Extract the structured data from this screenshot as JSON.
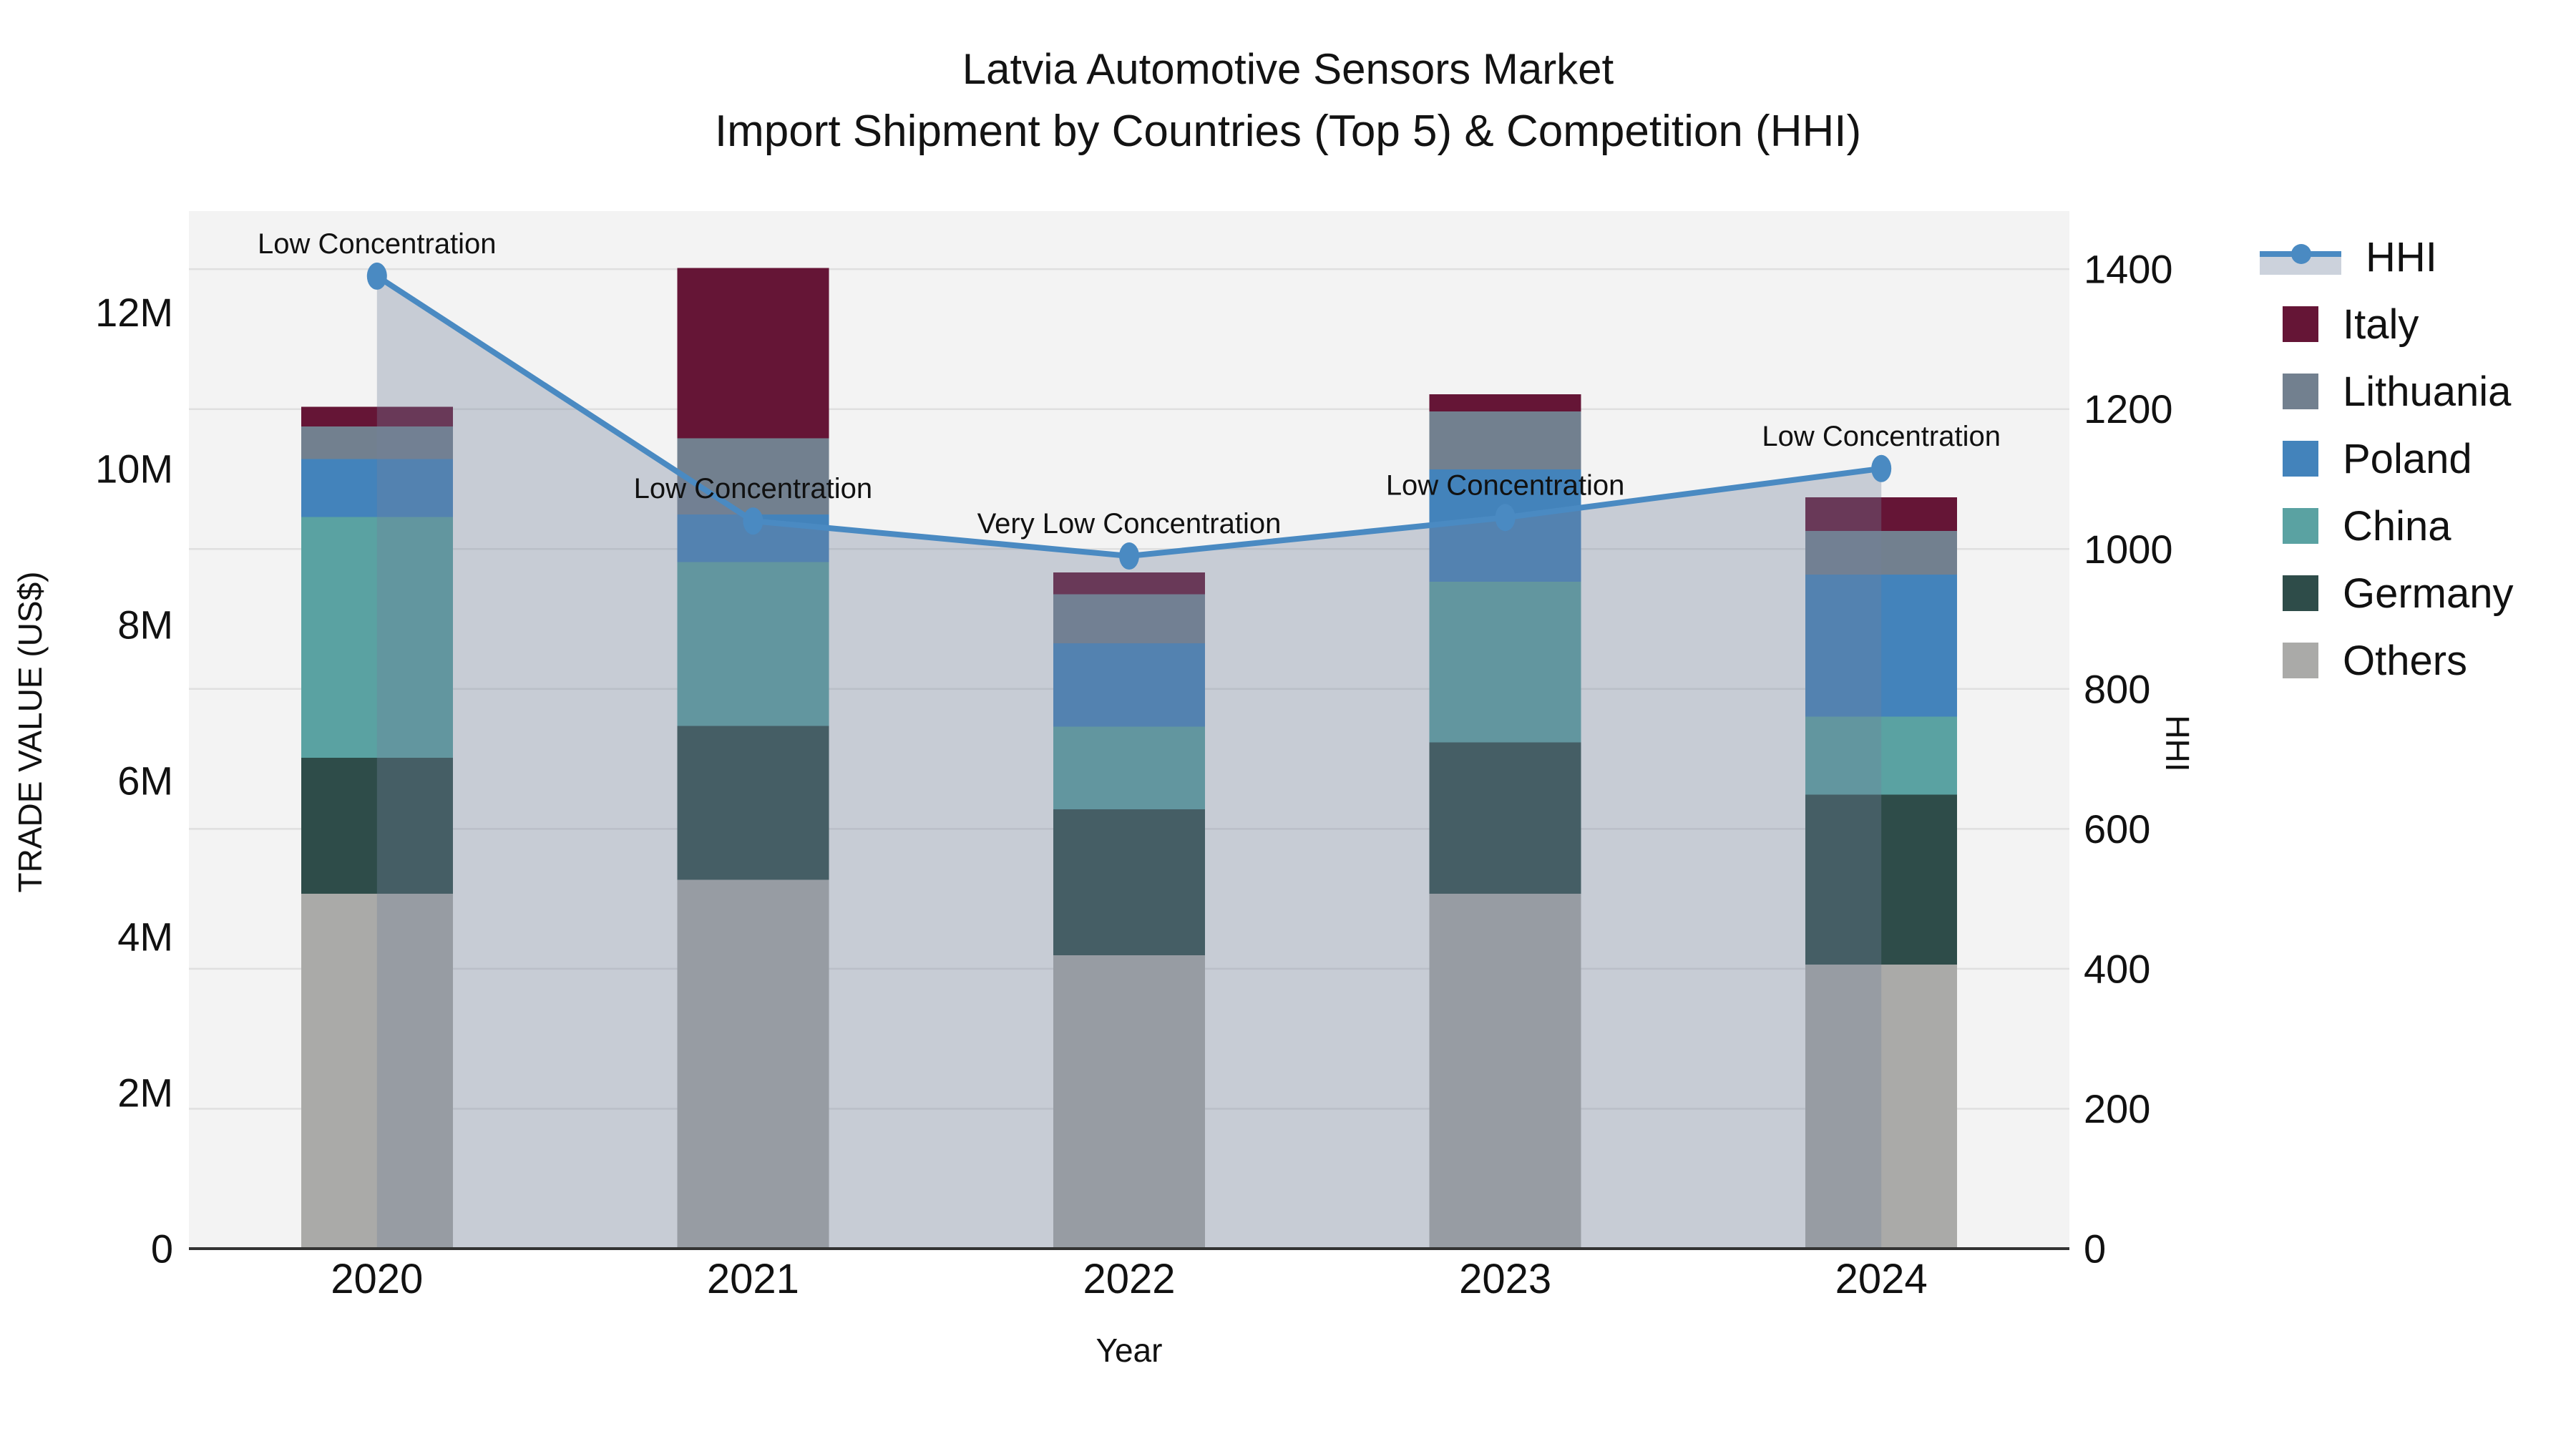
{
  "title": {
    "line1": "Latvia Automotive Sensors Market",
    "line2": "Import Shipment by Countries (Top 5) & Competition (HHI)"
  },
  "axes": {
    "x_label": "Year",
    "y_left_label": "TRADE VALUE (US$)",
    "y_right_label": "HHI",
    "y_left_tick_labels": [
      "0",
      "2M",
      "4M",
      "6M",
      "8M",
      "10M",
      "12M"
    ],
    "y_right_tick_labels": [
      "0",
      "200",
      "400",
      "600",
      "800",
      "1000",
      "1200",
      "1400"
    ]
  },
  "legend": {
    "items": [
      {
        "label": "HHI",
        "type": "line",
        "color": "#4a8ac2",
        "band": "#ccd2dc"
      },
      {
        "label": "Italy",
        "type": "swatch",
        "color": "#651536"
      },
      {
        "label": "Lithuania",
        "type": "swatch",
        "color": "#72808f"
      },
      {
        "label": "Poland",
        "type": "swatch",
        "color": "#4383bb"
      },
      {
        "label": "China",
        "type": "swatch",
        "color": "#5aa2a2"
      },
      {
        "label": "Germany",
        "type": "swatch",
        "color": "#2e4c49"
      },
      {
        "label": "Others",
        "type": "swatch",
        "color": "#aaaaa8"
      }
    ]
  },
  "chart_data": {
    "type": "bar+line",
    "title": "Latvia Automotive Sensors Market — Import Shipment by Countries (Top 5) & Competition (HHI)",
    "categories": [
      "2020",
      "2021",
      "2022",
      "2023",
      "2024"
    ],
    "value_unit": "million US$",
    "series": [
      {
        "name": "Others",
        "color": "#aaaaa8",
        "values": [
          4.55,
          4.73,
          3.76,
          4.55,
          3.64
        ]
      },
      {
        "name": "Germany",
        "color": "#2e4c49",
        "values": [
          1.74,
          1.97,
          1.87,
          1.94,
          2.18
        ]
      },
      {
        "name": "China",
        "color": "#5aa2a2",
        "values": [
          3.09,
          2.1,
          1.06,
          2.06,
          1.0
        ]
      },
      {
        "name": "Poland",
        "color": "#4383bb",
        "values": [
          0.74,
          0.61,
          1.07,
          1.44,
          1.82
        ]
      },
      {
        "name": "Lithuania",
        "color": "#72808f",
        "values": [
          0.42,
          0.98,
          0.63,
          0.74,
          0.56
        ]
      },
      {
        "name": "Italy",
        "color": "#651536",
        "values": [
          0.25,
          2.18,
          0.28,
          0.22,
          0.43
        ]
      }
    ],
    "bar_totals_m": [
      10.79,
      12.57,
      8.67,
      10.95,
      9.63
    ],
    "line_series": {
      "name": "HHI",
      "color": "#4a8ac2",
      "area_fill": "rgba(114,129,156,0.34)",
      "values": [
        1390,
        1040,
        990,
        1045,
        1115
      ],
      "annotations": [
        "Low Concentration",
        "Low Concentration",
        "Very Low Concentration",
        "Low Concentration",
        "Low Concentration"
      ]
    },
    "xlabel": "Year",
    "ylabel_left": "TRADE VALUE (US$)",
    "ylabel_right": "HHI",
    "y_left_ticks_m": [
      0,
      2,
      4,
      6,
      8,
      10,
      12
    ],
    "y_left_max_m": 13.3,
    "y_right_ticks": [
      0,
      200,
      400,
      600,
      800,
      1000,
      1200,
      1400
    ],
    "y_right_max": 1483,
    "grid": "horizontal, every 200 HHI",
    "legend_position": "right",
    "plot_bg": "#f3f3f3",
    "grid_color": "#dfdfdf",
    "spine_color": "#333333"
  }
}
